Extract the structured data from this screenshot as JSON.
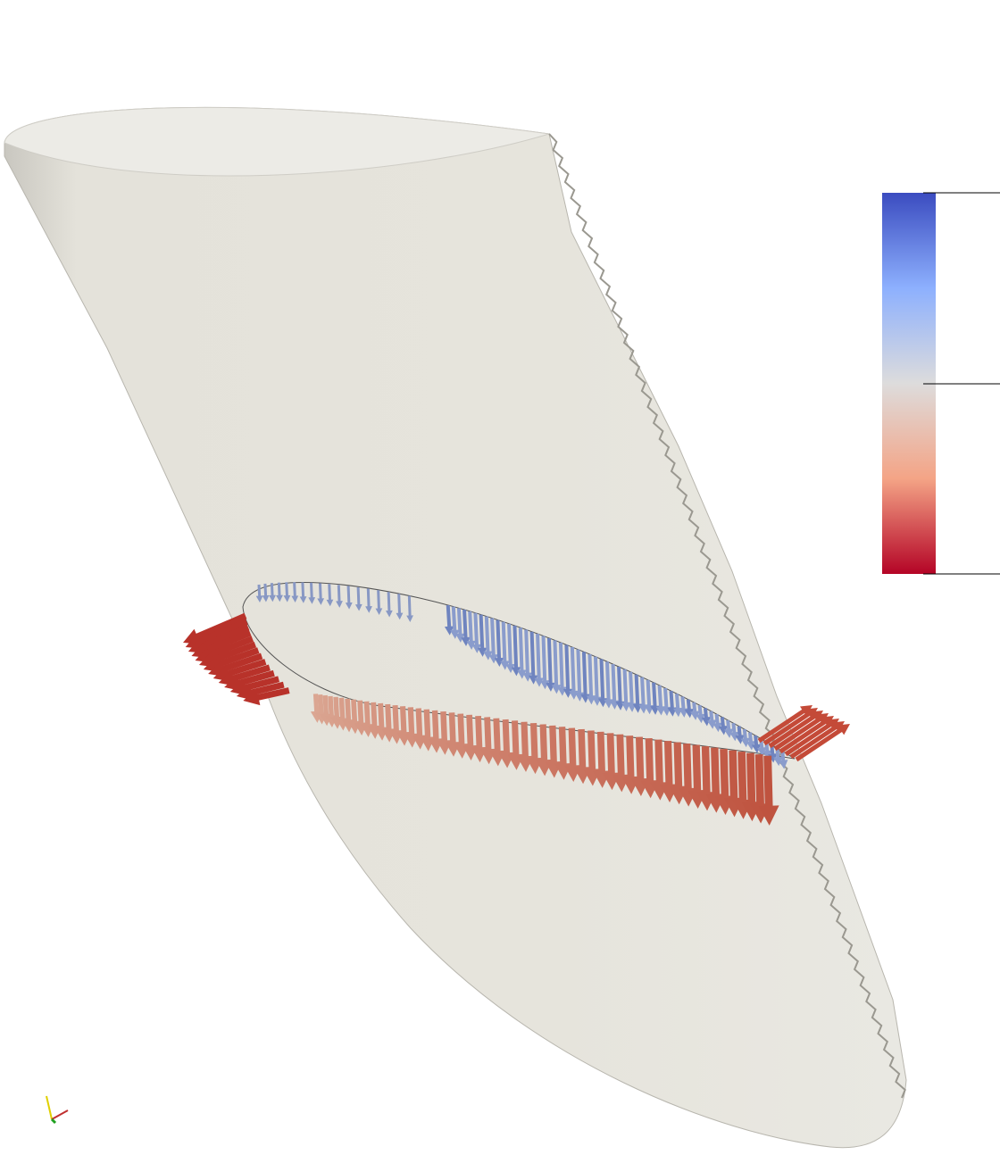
{
  "scene": {
    "colorbar": {
      "colors": [
        "#3b4cc0",
        "#8db0fe",
        "#dddcdc",
        "#f4a486",
        "#b40426"
      ]
    }
  }
}
